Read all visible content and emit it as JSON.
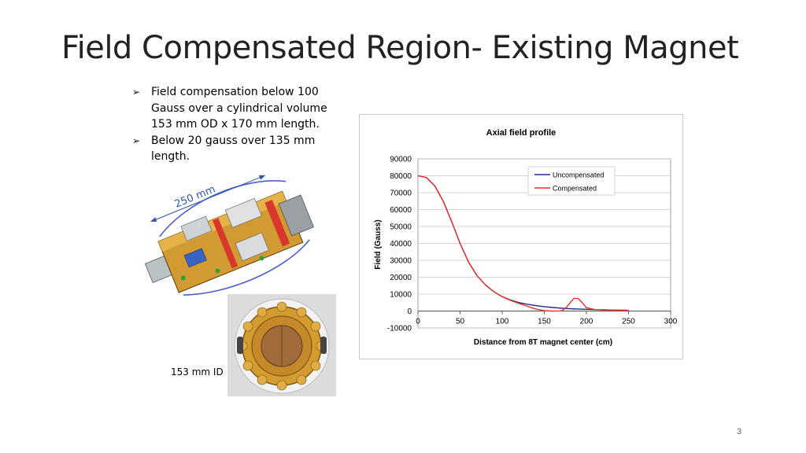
{
  "slide": {
    "title": "Field Compensated Region- Existing Magnet",
    "page_number": "3"
  },
  "bullets": [
    {
      "text": "Field compensation below 100 Gauss over a cylindrical volume 153 mm OD x 170 mm length."
    },
    {
      "text": "Below 20 gauss over 135 mm length."
    }
  ],
  "figure": {
    "dimension_label": "250 mm",
    "id_label": "153 mm ID"
  },
  "chart_data": {
    "type": "line",
    "title": "Axial field profile",
    "xlabel": "Distance from 8T magnet center (cm)",
    "ylabel": "Field (Gauss)",
    "xlim": [
      0,
      300
    ],
    "ylim": [
      -10000,
      90000
    ],
    "xticks": [
      "0",
      "50",
      "100",
      "150",
      "200",
      "250",
      "300"
    ],
    "yticks": [
      "90000",
      "80000",
      "70000",
      "60000",
      "50000",
      "40000",
      "30000",
      "20000",
      "10000",
      "0",
      "-10000"
    ],
    "legend_position": "top-right",
    "grid": true,
    "series": [
      {
        "name": "Uncompensated",
        "color": "#1f2a8c",
        "x": [
          0,
          10,
          20,
          30,
          40,
          50,
          60,
          70,
          80,
          90,
          100,
          110,
          120,
          130,
          140,
          150,
          160,
          170,
          180,
          190,
          200,
          210,
          220,
          230,
          240,
          250
        ],
        "y": [
          80000,
          79000,
          74000,
          65000,
          53000,
          40000,
          29000,
          21000,
          15500,
          11500,
          8500,
          6500,
          5000,
          4000,
          3200,
          2600,
          2100,
          1700,
          1400,
          1200,
          1000,
          850,
          700,
          600,
          500,
          400
        ]
      },
      {
        "name": "Compensated",
        "color": "#e8302a",
        "x": [
          0,
          10,
          20,
          30,
          40,
          50,
          60,
          70,
          80,
          90,
          100,
          110,
          120,
          130,
          140,
          150,
          160,
          170,
          175,
          180,
          185,
          190,
          195,
          200,
          210,
          220,
          230,
          240,
          250
        ],
        "y": [
          80000,
          79000,
          74000,
          65000,
          53000,
          40000,
          29000,
          21000,
          15500,
          11500,
          8500,
          6300,
          4500,
          2800,
          1200,
          200,
          0,
          100,
          1500,
          4500,
          7500,
          7500,
          5000,
          2000,
          900,
          700,
          600,
          500,
          400
        ]
      }
    ]
  },
  "colors": {
    "grid": "#c8c8c8",
    "axis": "#888888",
    "text": "#000000"
  }
}
